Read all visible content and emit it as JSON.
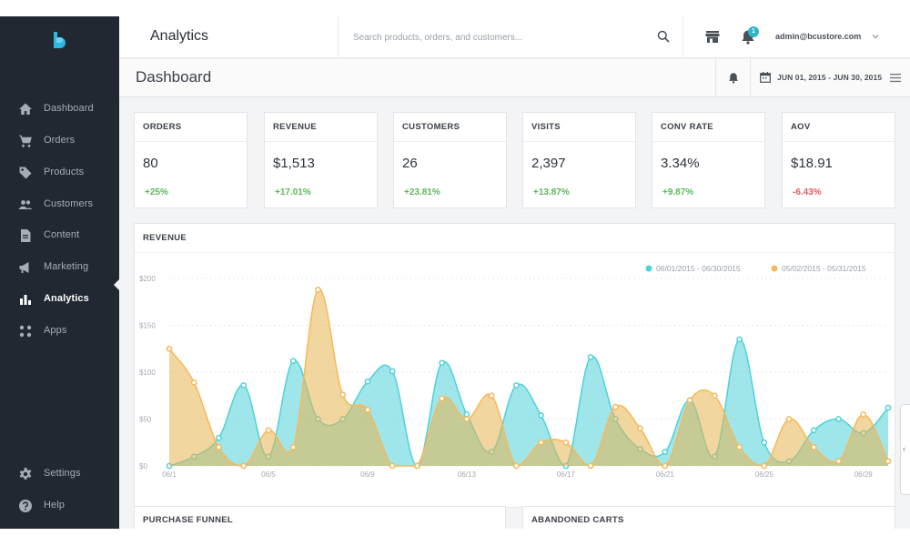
{
  "sidebar": {
    "items": [
      {
        "label": "Dashboard",
        "icon": "home-icon"
      },
      {
        "label": "Orders",
        "icon": "cart-icon"
      },
      {
        "label": "Products",
        "icon": "tag-icon"
      },
      {
        "label": "Customers",
        "icon": "people-icon"
      },
      {
        "label": "Content",
        "icon": "document-icon"
      },
      {
        "label": "Marketing",
        "icon": "megaphone-icon"
      },
      {
        "label": "Analytics",
        "icon": "bar-chart-icon",
        "active": true
      },
      {
        "label": "Apps",
        "icon": "grid-dots-icon"
      }
    ],
    "footer": [
      {
        "label": "Settings",
        "icon": "gear-icon"
      },
      {
        "label": "Help",
        "icon": "help-icon"
      }
    ]
  },
  "topbar": {
    "title": "Analytics",
    "search_placeholder": "Search products, orders, and customers...",
    "notification_count": "1",
    "user_email": "admin@bcustore.com"
  },
  "subheader": {
    "title": "Dashboard",
    "date_range": "JUN 01, 2015 - JUN 30, 2015"
  },
  "metrics": [
    {
      "label": "ORDERS",
      "value": "80",
      "change": "+25%",
      "trend": "up"
    },
    {
      "label": "REVENUE",
      "value": "$1,513",
      "change": "+17.01%",
      "trend": "up"
    },
    {
      "label": "CUSTOMERS",
      "value": "26",
      "change": "+23.81%",
      "trend": "up"
    },
    {
      "label": "VISITS",
      "value": "2,397",
      "change": "+13.87%",
      "trend": "up"
    },
    {
      "label": "CONV RATE",
      "value": "3.34%",
      "change": "+9.87%",
      "trend": "up"
    },
    {
      "label": "AOV",
      "value": "$18.91",
      "change": "-6.43%",
      "trend": "down"
    }
  ],
  "revenue_panel": {
    "title": "REVENUE"
  },
  "bottom_panels": {
    "funnel_title": "PURCHASE FUNNEL",
    "carts_title": "ABANDONED CARTS"
  },
  "colors": {
    "sidebar_bg": "#222831",
    "accent_teal": "#4fd1d9",
    "accent_orange": "#f5b95a",
    "positive": "#5cb85c",
    "negative": "#e05c5c"
  },
  "chart_data": {
    "type": "area",
    "title": "REVENUE",
    "x_tick_labels": [
      "06/1",
      "06/5",
      "06/9",
      "06/13",
      "06/17",
      "06/21",
      "06/25",
      "06/29"
    ],
    "x": [
      1,
      2,
      3,
      4,
      5,
      6,
      7,
      8,
      9,
      10,
      11,
      12,
      13,
      14,
      15,
      16,
      17,
      18,
      19,
      20,
      21,
      22,
      23,
      24,
      25,
      26,
      27,
      28,
      29,
      30
    ],
    "ylim": [
      0,
      200
    ],
    "y_ticks": [
      "$0",
      "$50",
      "$100",
      "$150",
      "$200"
    ],
    "y_tick_values": [
      0,
      50,
      100,
      150,
      200
    ],
    "grid": true,
    "legend_position": "top-right",
    "series": [
      {
        "name": "06/01/2015 - 06/30/2015",
        "color": "#4fd1d9",
        "values": [
          0,
          10,
          30,
          86,
          10,
          112,
          50,
          50,
          90,
          101,
          0,
          110,
          55,
          15,
          86,
          54,
          0,
          116,
          50,
          18,
          15,
          70,
          10,
          135,
          25,
          5,
          38,
          50,
          35,
          62
        ]
      },
      {
        "name": "05/02/2015 - 05/31/2015",
        "color": "#f5b95a",
        "values": [
          125,
          89,
          20,
          0,
          38,
          20,
          188,
          76,
          60,
          0,
          0,
          72,
          50,
          75,
          0,
          25,
          25,
          0,
          63,
          40,
          0,
          70,
          75,
          20,
          0,
          50,
          20,
          5,
          55,
          5
        ]
      }
    ]
  }
}
